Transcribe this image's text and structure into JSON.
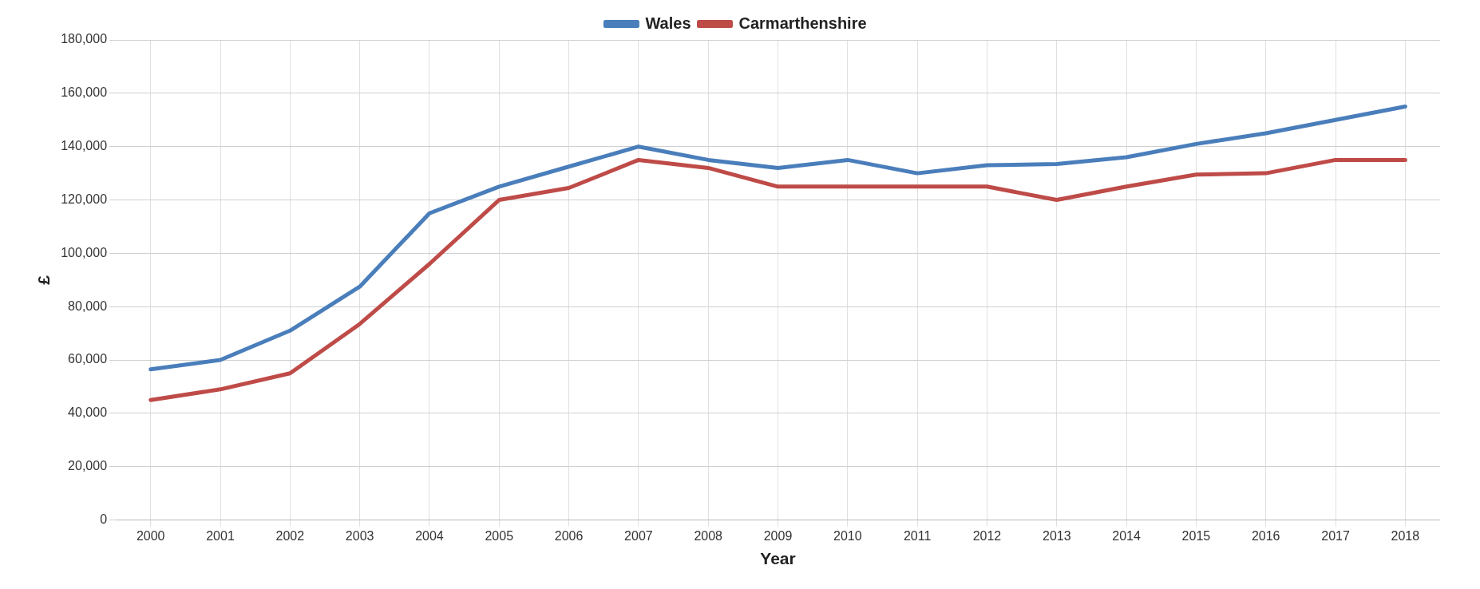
{
  "chart_data": {
    "type": "line",
    "xlabel": "Year",
    "ylabel": "£",
    "categories": [
      "2000",
      "2001",
      "2002",
      "2003",
      "2004",
      "2005",
      "2006",
      "2007",
      "2008",
      "2009",
      "2010",
      "2011",
      "2012",
      "2013",
      "2014",
      "2015",
      "2016",
      "2017",
      "2018"
    ],
    "series": [
      {
        "name": "Wales",
        "color": "#4a7ebb",
        "values": [
          56500,
          60000,
          71000,
          87500,
          115000,
          125000,
          132500,
          140000,
          135000,
          132000,
          135000,
          130000,
          133000,
          133500,
          136000,
          141000,
          145000,
          150000,
          155000
        ]
      },
      {
        "name": "Carmarthenshire",
        "color": "#be4b48",
        "values": [
          45000,
          49000,
          55000,
          73500,
          96000,
          120000,
          124500,
          135000,
          132000,
          125000,
          125000,
          125000,
          125000,
          120000,
          125000,
          129500,
          130000,
          135000,
          135000
        ]
      }
    ],
    "ylim": [
      0,
      180000
    ],
    "yticks": [
      0,
      {
        "value": 20000,
        "label": "20,000"
      },
      {
        "value": 40000,
        "label": "40,000"
      },
      {
        "value": 60000,
        "label": "60,000"
      },
      {
        "value": 80000,
        "label": "80,000"
      },
      {
        "value": 100000,
        "label": "100,000"
      },
      {
        "value": 120000,
        "label": "120,000"
      },
      {
        "value": 140000,
        "label": "140,000"
      },
      {
        "value": 160000,
        "label": "160,000"
      },
      {
        "value": 180000,
        "label": "180,000"
      }
    ],
    "grid": true,
    "legend": "top",
    "marker": "none",
    "line_style": "solid"
  }
}
